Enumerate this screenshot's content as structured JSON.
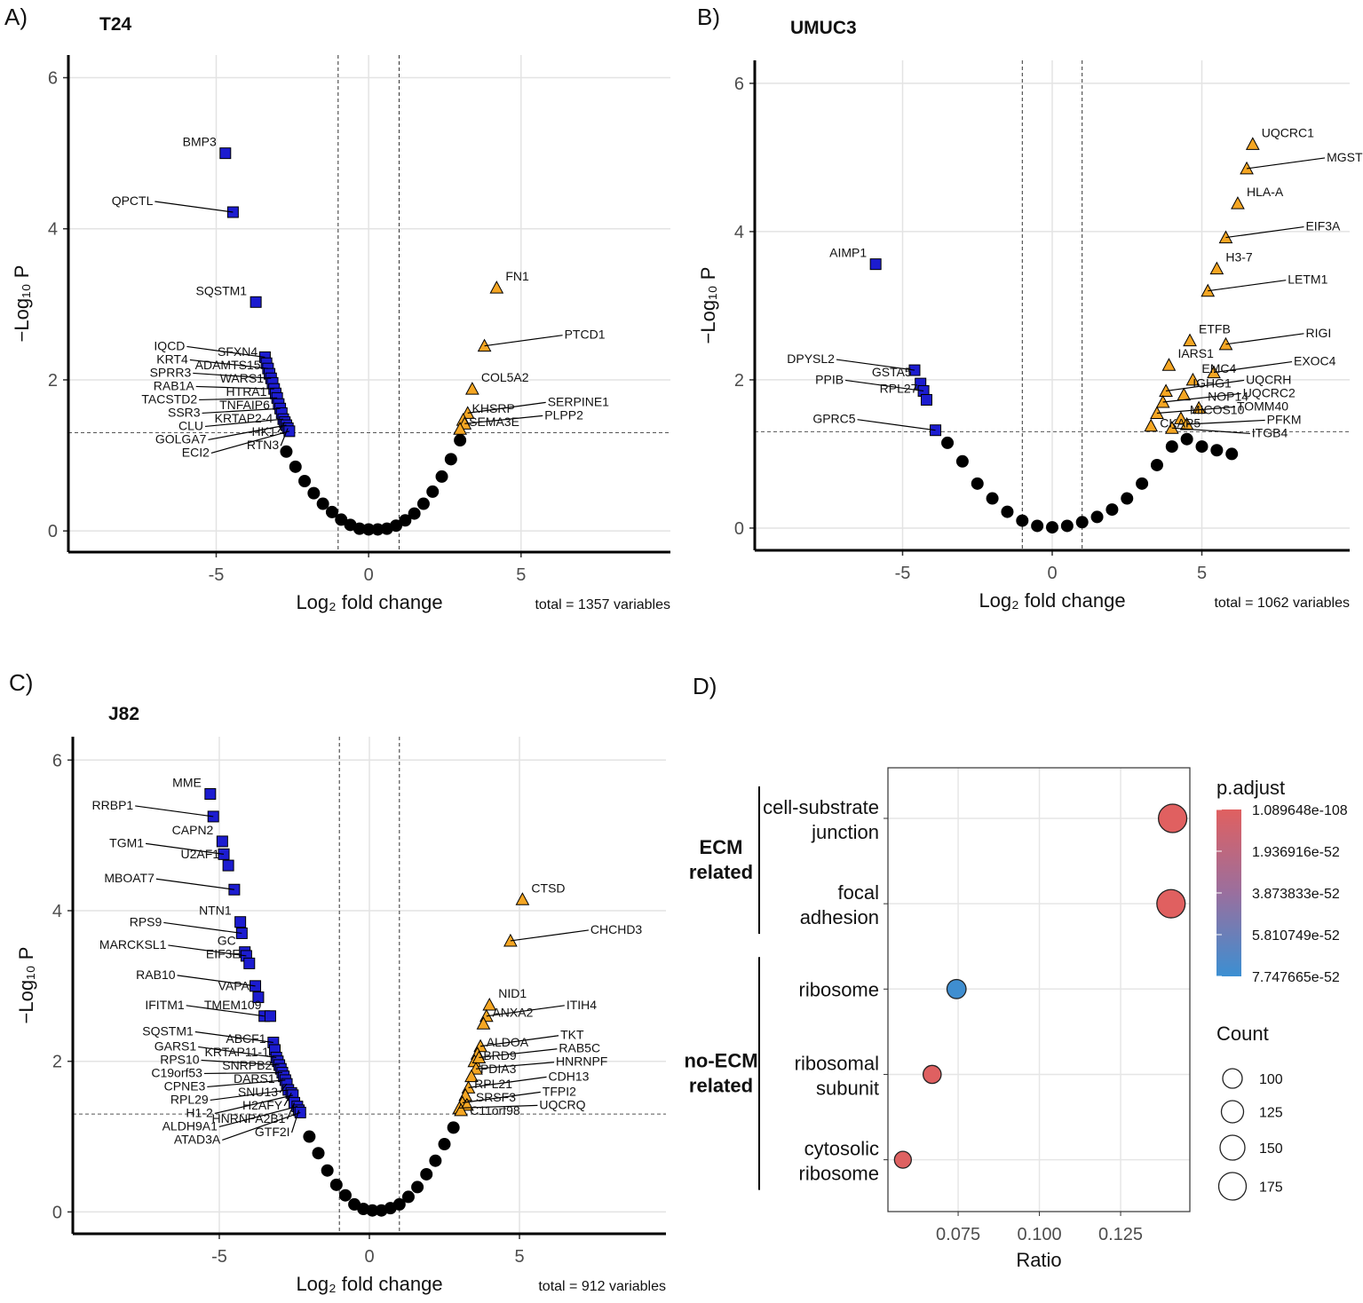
{
  "chart_data": [
    {
      "type": "volcano",
      "panel": "A)",
      "title": "T24",
      "x_label": "Log₂ fold change",
      "y_label": "−Log₁₀ P",
      "caption": "total = 1357 variables",
      "xlim": [
        -9.85,
        9.9
      ],
      "ylim": [
        -0.28,
        6.3
      ],
      "xticks": [
        -5,
        0,
        5
      ],
      "yticks": [
        0,
        2,
        4,
        6
      ],
      "grid": true,
      "vlines": [
        -1,
        1
      ],
      "hline": 1.3,
      "series": [
        {
          "marker": "circle",
          "color": "#000000",
          "x": [
            -2.7,
            -2.4,
            -2.1,
            -1.8,
            -1.5,
            -1.2,
            -0.9,
            -0.6,
            -0.3,
            0,
            0.3,
            0.6,
            0.9,
            1.2,
            1.5,
            1.8,
            2.1,
            2.4,
            2.7,
            3.0
          ],
          "y": [
            1.05,
            0.85,
            0.66,
            0.5,
            0.36,
            0.25,
            0.15,
            0.08,
            0.03,
            0.02,
            0.02,
            0.03,
            0.07,
            0.14,
            0.23,
            0.36,
            0.52,
            0.72,
            0.95,
            1.2
          ]
        },
        {
          "marker": "square",
          "color": "#1c1cd0",
          "x": [
            -4.7,
            -4.45,
            -3.7,
            -3.4,
            -3.35,
            -3.3,
            -3.25,
            -3.2,
            -3.15,
            -3.1,
            -3.05,
            -3.0,
            -2.95,
            -2.9,
            -2.85,
            -2.8,
            -2.75,
            -2.7,
            -2.65,
            -2.6
          ],
          "y": [
            5.0,
            4.22,
            3.03,
            2.3,
            2.22,
            2.15,
            2.08,
            2.02,
            1.96,
            1.88,
            1.82,
            1.76,
            1.68,
            1.62,
            1.56,
            1.48,
            1.44,
            1.4,
            1.36,
            1.32
          ],
          "labels": [
            "BMP3",
            "QPCTL",
            "SQSTM1",
            "IQCD",
            "SFXN4",
            "KRT4",
            "ADAMTS15",
            "SPRR3",
            "WARS1",
            "RAB1A",
            "HTRA1",
            "TACSTD2",
            "TNFAIP6",
            "SSR3",
            "KRTAP2-4",
            "CLU",
            "HK1",
            "GOLGA7",
            "RTN3",
            "ECI2"
          ]
        },
        {
          "marker": "triangle",
          "color": "#f5a623",
          "x": [
            4.2,
            3.8,
            3.4,
            3.25,
            3.1,
            3.15,
            3.0
          ],
          "y": [
            3.22,
            2.45,
            1.88,
            1.56,
            1.47,
            1.42,
            1.35
          ],
          "labels": [
            "FN1",
            "PTCD1",
            "COL5A2",
            "SERPINE1",
            "KHSRP",
            "PLPP2",
            "SEMA3E"
          ]
        }
      ]
    },
    {
      "type": "volcano",
      "panel": "B)",
      "title": "UMUC3",
      "x_label": "Log₂ fold change",
      "y_label": "−Log₁₀ P",
      "caption": "total = 1062 variables",
      "xlim": [
        -9.94,
        9.94
      ],
      "ylim": [
        -0.3,
        6.31
      ],
      "xticks": [
        -5,
        0,
        5
      ],
      "yticks": [
        0,
        2,
        4,
        6
      ],
      "grid": true,
      "vlines": [
        -1,
        1
      ],
      "hline": 1.3,
      "series": [
        {
          "marker": "circle",
          "color": "#000000",
          "x": [
            -3.5,
            -3.0,
            -2.5,
            -2.0,
            -1.5,
            -1.0,
            -0.5,
            0,
            0.5,
            1.0,
            1.5,
            2.0,
            2.5,
            3.0,
            3.5,
            4.0,
            4.5,
            5.0,
            5.5,
            6.0
          ],
          "y": [
            1.15,
            0.9,
            0.6,
            0.4,
            0.22,
            0.1,
            0.03,
            0.01,
            0.03,
            0.08,
            0.15,
            0.25,
            0.4,
            0.6,
            0.85,
            1.1,
            1.2,
            1.1,
            1.05,
            1.0
          ]
        },
        {
          "marker": "square",
          "color": "#1c1cd0",
          "x": [
            -5.9,
            -4.6,
            -4.4,
            -4.3,
            -4.2,
            -3.9
          ],
          "y": [
            3.56,
            2.13,
            1.95,
            1.85,
            1.73,
            1.32
          ],
          "labels": [
            "AIMP1",
            "DPYSL2",
            "GSTA5",
            "PPIB",
            "RPL27",
            "GPRC5"
          ]
        },
        {
          "marker": "triangle",
          "color": "#f5a623",
          "x": [
            6.7,
            6.5,
            6.2,
            5.8,
            5.5,
            5.2,
            4.6,
            5.8,
            3.9,
            4.7,
            5.4,
            3.8,
            4.4,
            4.9,
            3.7,
            3.5,
            4.3,
            3.3,
            4.0,
            4.5
          ],
          "y": [
            5.18,
            4.85,
            4.38,
            3.92,
            3.5,
            3.2,
            2.53,
            2.48,
            2.2,
            2.0,
            2.1,
            1.85,
            1.8,
            1.62,
            1.7,
            1.55,
            1.48,
            1.38,
            1.35,
            1.4
          ],
          "labels": [
            "UQCRC1",
            "MGST3",
            "HLA-A",
            "EIF3A",
            "H3-7",
            "LETM1",
            "ETFB",
            "RIGI",
            "IARS1",
            "EMC4",
            "EXOC4",
            "UQCRH",
            "IGHG1",
            "NOP14",
            "UQCRC2",
            "TOMM40",
            "MICOS10",
            "CKAP5",
            "ITGB4",
            "PFKM"
          ]
        }
      ]
    },
    {
      "type": "volcano",
      "panel": "C)",
      "title": "J82",
      "x_label": "Log₂ fold change",
      "y_label": "−Log₁₀ P",
      "caption": "total = 912 variables",
      "xlim": [
        -9.88,
        9.88
      ],
      "ylim": [
        -0.29,
        6.31
      ],
      "xticks": [
        -5,
        0,
        5
      ],
      "yticks": [
        0,
        2,
        4,
        6
      ],
      "grid": true,
      "vlines": [
        -1,
        1
      ],
      "hline": 1.3,
      "series": [
        {
          "marker": "circle",
          "color": "#000000",
          "x": [
            -2.0,
            -1.7,
            -1.4,
            -1.1,
            -0.8,
            -0.5,
            -0.2,
            0.1,
            0.4,
            0.7,
            1.0,
            1.3,
            1.6,
            1.9,
            2.2,
            2.5,
            2.8
          ],
          "y": [
            1.0,
            0.78,
            0.55,
            0.36,
            0.22,
            0.1,
            0.04,
            0.02,
            0.02,
            0.05,
            0.1,
            0.2,
            0.33,
            0.5,
            0.68,
            0.9,
            1.12
          ]
        },
        {
          "marker": "square",
          "color": "#1c1cd0",
          "x": [
            -5.3,
            -5.2,
            -4.9,
            -4.85,
            -4.7,
            -4.5,
            -4.3,
            -4.25,
            -4.15,
            -4.1,
            -4.0,
            -3.8,
            -3.7,
            -3.5,
            -3.3,
            -3.2,
            -3.15,
            -3.1,
            -3.05,
            -3.0,
            -2.95,
            -2.9,
            -2.85,
            -2.8,
            -2.75,
            -2.7,
            -2.6,
            -2.55,
            -2.5,
            -2.4,
            -2.35,
            -2.3
          ],
          "y": [
            5.55,
            5.25,
            4.92,
            4.75,
            4.6,
            4.28,
            3.85,
            3.7,
            3.45,
            3.4,
            3.3,
            3.0,
            2.85,
            2.6,
            2.6,
            2.25,
            2.15,
            2.05,
            2.0,
            1.95,
            1.9,
            1.85,
            1.8,
            1.75,
            1.7,
            1.62,
            1.58,
            1.55,
            1.45,
            1.4,
            1.35,
            1.32
          ],
          "labels": [
            "MME",
            "RRBP1",
            "CAPN2",
            "TGM1",
            "U2AF1",
            "MBOAT7",
            "NTN1",
            "RPS9",
            "GC",
            "MARCKSL1",
            "EIF3E",
            "RAB10",
            "VAPA",
            "IFITM1",
            "TMEM109",
            "SQSTM1",
            "ABCF1",
            "GARS1",
            "KRTAP11-1",
            "RPS10",
            "SNRPB2",
            "C19orf53",
            "DARS1",
            "CPNE3",
            "SNU13",
            "RPL29",
            "H2AFY",
            "H1-2",
            "HNRNPA2B1",
            "ALDH9A1",
            "GTF2I",
            "ATAD3A"
          ]
        },
        {
          "marker": "triangle",
          "color": "#f5a623",
          "x": [
            5.1,
            4.7,
            4.0,
            3.9,
            3.8,
            3.7,
            3.6,
            3.5,
            3.65,
            3.55,
            3.4,
            3.3,
            3.2,
            3.1,
            3.25,
            3.0,
            3.05
          ],
          "y": [
            4.15,
            3.6,
            2.75,
            2.6,
            2.5,
            2.2,
            2.1,
            2.0,
            2.05,
            1.9,
            1.8,
            1.65,
            1.55,
            1.45,
            1.42,
            1.38,
            1.35
          ],
          "labels": [
            "CTSD",
            "CHCHD3",
            "NID1",
            "ITIH4",
            "ANXA2",
            "TKT",
            "ALDOA",
            "BRD9",
            "RAB5C",
            "HNRNPF",
            "PDIA3",
            "CDH13",
            "RPL21",
            "TFPI2",
            "SRSF3",
            "UQCRQ",
            "C11orf98"
          ]
        }
      ]
    },
    {
      "type": "dotplot",
      "panel": "D)",
      "x_label": "Ratio",
      "xlim": [
        0.0534,
        0.1463
      ],
      "xticks": [
        {
          "value": 0.075,
          "label": "0.075"
        },
        {
          "value": 0.1,
          "label": "0.100"
        },
        {
          "value": 0.125,
          "label": "0.125"
        }
      ],
      "grid": true,
      "groups": [
        {
          "label": "ECM related",
          "categories": [
            "cell-substrate junction",
            "focal adhesion"
          ],
          "values": [
            0.141,
            0.1405
          ],
          "counts": [
            183,
            182
          ],
          "p_adjust": [
            2e-70,
            5e-60
          ]
        },
        {
          "label": "no-ECM related",
          "categories": [
            "ribosome",
            "ribosomal subunit",
            "cytosolic ribosome"
          ],
          "values": [
            0.0745,
            0.067,
            0.058
          ],
          "counts": [
            96,
            86,
            75
          ],
          "p_adjust": [
            7.6e-52,
            5e-54,
            1e-53
          ]
        }
      ],
      "color_title": "p.adjust",
      "color_ticks": [
        1.089648e-108,
        1.936916e-52,
        3.873833e-52,
        5.810749e-52,
        7.747665e-52
      ],
      "color_low": "#e06060",
      "color_high": "#3c8fd2",
      "size_title": "Count",
      "size_ticks": [
        100,
        125,
        150,
        175
      ]
    }
  ]
}
